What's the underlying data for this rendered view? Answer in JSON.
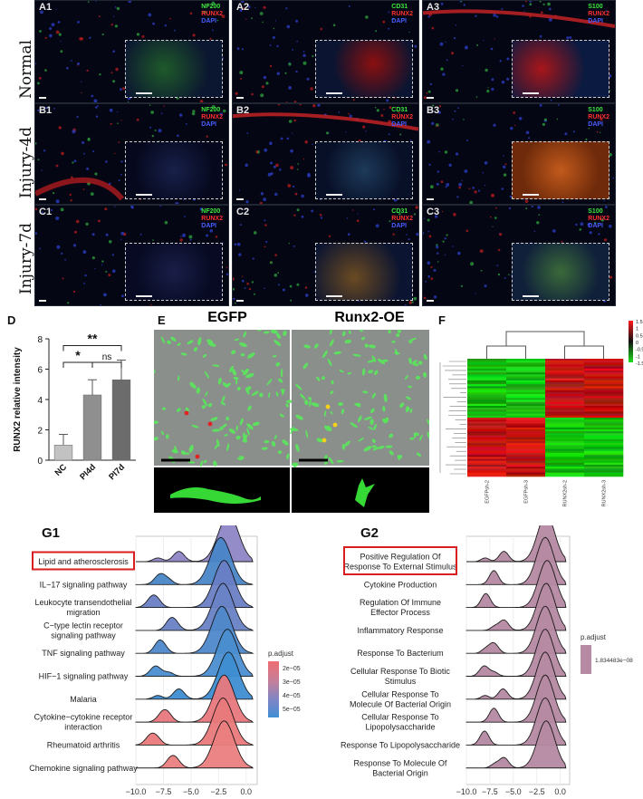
{
  "panel_a": {
    "rows": [
      "Normal",
      "Injury-4d",
      "Injury-7d"
    ],
    "tiles": [
      {
        "tag": "A1",
        "markers": [
          "NF200",
          "RUNX2",
          "DAPI"
        ]
      },
      {
        "tag": "A2",
        "markers": [
          "CD31",
          "RUNX2",
          "DAPI"
        ]
      },
      {
        "tag": "A3",
        "markers": [
          "S100",
          "RUNX2",
          "DAPI"
        ]
      },
      {
        "tag": "B1",
        "markers": [
          "NF200",
          "RUNX2",
          "DAPI"
        ]
      },
      {
        "tag": "B2",
        "markers": [
          "CD31",
          "RUNX2",
          "DAPI"
        ]
      },
      {
        "tag": "B3",
        "markers": [
          "S100",
          "RUNX2",
          "DAPI"
        ]
      },
      {
        "tag": "C1",
        "markers": [
          "NF200",
          "RUNX2",
          "DAPI"
        ]
      },
      {
        "tag": "C2",
        "markers": [
          "CD31",
          "RUNX2",
          "DAPI"
        ]
      },
      {
        "tag": "C3",
        "markers": [
          "S100",
          "RUNX2",
          "DAPI"
        ]
      }
    ],
    "marker_colors": [
      "#3ee83e",
      "#ff3030",
      "#4a5cff"
    ]
  },
  "panel_d": {
    "letter": "D",
    "chart_data": {
      "type": "bar",
      "categories": [
        "NC",
        "PI4d",
        "PI7d"
      ],
      "values": [
        1.0,
        4.3,
        5.3
      ],
      "errors": [
        0.7,
        1.0,
        1.3
      ],
      "ylabel": "RUNX2 relative intensity",
      "ylim": [
        0,
        8
      ],
      "yticks": [
        "0",
        "2",
        "4",
        "6",
        "8"
      ],
      "bar_colors": [
        "#c2c2c2",
        "#8f8f8f",
        "#6c6c6c"
      ],
      "significance": [
        {
          "from": "NC",
          "to": "PI4d",
          "label": "*"
        },
        {
          "from": "PI4d",
          "to": "PI7d",
          "label": "ns"
        },
        {
          "from": "NC",
          "to": "PI7d",
          "label": "**"
        }
      ]
    }
  },
  "panel_e": {
    "letter": "E",
    "left_title": "EGFP",
    "right_title": "Runx2-OE"
  },
  "panel_f": {
    "letter": "F",
    "scale_ticks": [
      "1.5",
      "1",
      "0.5",
      "0",
      "-0.5",
      "-1",
      "-1.5"
    ],
    "samples": [
      "EGFPsh-2",
      "EGFPsh-3",
      "RUNX2sh-2",
      "RUNX2sh-3"
    ]
  },
  "panel_g1": {
    "letter": "G1",
    "chart_data": {
      "type": "area",
      "categories": [
        "Lipid and atherosclerosis",
        "IL−17 signaling pathway",
        "Leukocyte transendothelial migration",
        "C−type lectin receptor signaling pathway",
        "TNF signaling pathway",
        "HIF−1 signaling pathway",
        "Malaria",
        "Cytokine−cytokine receptor interaction",
        "Rheumatoid arthritis",
        "Chemokine signaling pathway"
      ],
      "labels": [
        [
          "Lipid and atherosclerosis"
        ],
        [
          "IL−17 signaling pathway"
        ],
        [
          "Leukocyte transendothelial",
          "migration"
        ],
        [
          "C−type lectin receptor",
          "signaling pathway"
        ],
        [
          "TNF signaling pathway"
        ],
        [
          "HIF−1 signaling pathway"
        ],
        [
          "Malaria"
        ],
        [
          "Cytokine−cytokine receptor",
          "interaction"
        ],
        [
          "Rheumatoid arthritis"
        ],
        [
          "Chemokine signaling pathway"
        ]
      ],
      "peak_x": [
        -1.6,
        -2.3,
        -2.0,
        -2.1,
        -2.2,
        -1.7,
        -1.6,
        -2.0,
        -2.1,
        -2.0
      ],
      "p_adjust": [
        4.4e-05,
        5e-05,
        4.9e-05,
        4.3e-05,
        5.2e-05,
        5.4e-05,
        5.5e-05,
        2.2e-05,
        2.1e-05,
        2e-05
      ],
      "fill_colors": [
        "#8e86c6",
        "#4a86c8",
        "#6a7fc5",
        "#6a82c6",
        "#4f88cb",
        "#4b8fd0",
        "#3f8ed2",
        "#e8797e",
        "#ea7a7c",
        "#ec7f80"
      ],
      "xticks": [
        "−10.0",
        "−7.5",
        "−5.0",
        "−2.5",
        "0.0"
      ],
      "xlim": [
        -10.0,
        1.0
      ],
      "highlight": "Lipid and atherosclerosis",
      "legend_title": "p.adjust",
      "legend_ticks": [
        "2e−05",
        "3e−05",
        "4e−05",
        "5e−05"
      ]
    }
  },
  "panel_g2": {
    "letter": "G2",
    "chart_data": {
      "type": "area",
      "categories": [
        "Positive Regulation Of Response To External Stimulus",
        "Cytokine Production",
        "Regulation Of Immune Effector Process",
        "Inflammatory Response",
        "Response To Bacterium",
        "Cellular Response To Biotic Stimulus",
        "Cellular Response To Molecule Of Bacterial Origin",
        "Cellular Response To Lipopolysaccharide",
        "Response To Lipopolysaccharide",
        "Response To Molecule Of Bacterial Origin"
      ],
      "labels": [
        [
          "Positive Regulation Of",
          "Response To External Stimulus"
        ],
        [
          "Cytokine Production"
        ],
        [
          "Regulation Of Immune",
          "Effector Process"
        ],
        [
          "Inflammatory Response"
        ],
        [
          "Response To Bacterium"
        ],
        [
          "Cellular Response To Biotic",
          "Stimulus"
        ],
        [
          "Cellular Response To",
          "Molecule Of Bacterial Origin"
        ],
        [
          "Cellular Response To",
          "Lipopolysaccharide"
        ],
        [
          "Response To Lipopolysaccharide"
        ],
        [
          "Response To Molecule Of",
          "Bacterial Origin"
        ]
      ],
      "peak_x": [
        -1.5,
        -1.6,
        -1.4,
        -1.5,
        -1.6,
        -1.6,
        -1.6,
        -1.6,
        -1.6,
        -1.5
      ],
      "fill_color": "#b58aa2",
      "xticks": [
        "−10.0",
        "−7.5",
        "−5.0",
        "−2.5",
        "0.0"
      ],
      "xlim": [
        -10.0,
        1.0
      ],
      "highlight": "Positive Regulation Of Response To External Stimulus",
      "legend_title": "p.adjust",
      "legend_ticks": [
        "1.834483e−08"
      ]
    }
  }
}
